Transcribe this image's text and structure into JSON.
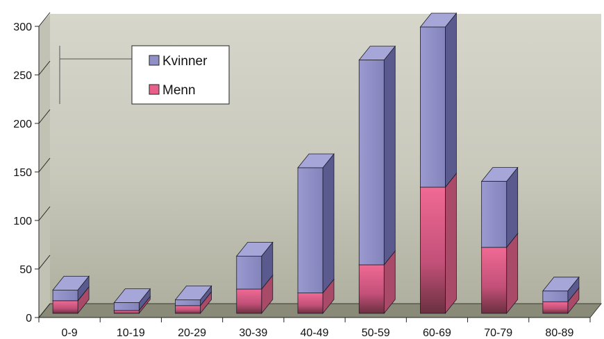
{
  "chart_data": {
    "type": "bar",
    "stacked": true,
    "three_d": true,
    "categories": [
      "0-9",
      "10-19",
      "20-29",
      "30-39",
      "40-49",
      "50-59",
      "60-69",
      "70-79",
      "80-89"
    ],
    "series": [
      {
        "name": "Menn",
        "values": [
          13,
          3,
          8,
          25,
          21,
          50,
          130,
          68,
          12
        ],
        "color": "#e8608a"
      },
      {
        "name": "Kvinner",
        "values": [
          11,
          8,
          6,
          34,
          129,
          211,
          165,
          68,
          11
        ],
        "color": "#9090c6"
      }
    ],
    "title": "",
    "xlabel": "",
    "ylabel": "",
    "ylim": [
      0,
      300
    ],
    "yticks": [
      0,
      50,
      100,
      150,
      200,
      250,
      300
    ],
    "grid": false,
    "legend": {
      "position": "top-left",
      "entries": [
        "Kvinner",
        "Menn"
      ]
    },
    "colors": {
      "wall": "#d4d4c8",
      "floor": "#8a8a78"
    }
  }
}
